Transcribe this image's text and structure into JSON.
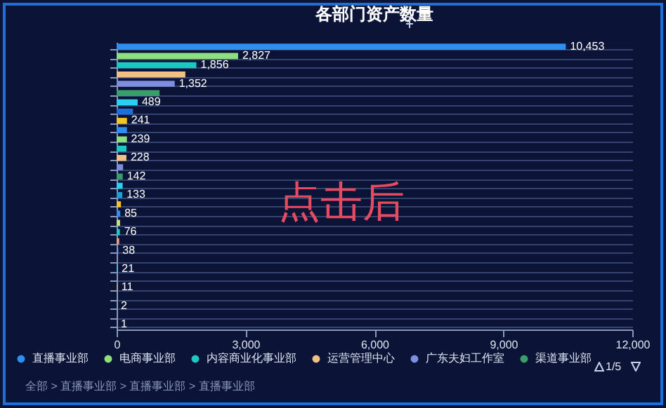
{
  "chart_data": {
    "type": "bar",
    "orientation": "horizontal",
    "title": "各部门资产数量",
    "categories": [
      null,
      null,
      null,
      null,
      null,
      null,
      null,
      null,
      null,
      null,
      null,
      null,
      null,
      null,
      null,
      null,
      null,
      null,
      null,
      null,
      null,
      null,
      null,
      null,
      null,
      null,
      null,
      null,
      null,
      null,
      null
    ],
    "series": [
      {
        "name": "直播事业部",
        "color": "#2f8ff0",
        "values": [
          10453,
          null,
          null,
          null,
          null,
          null,
          null,
          null,
          null,
          null,
          null,
          null,
          null,
          null,
          null,
          null,
          null,
          null,
          null,
          null,
          null,
          null,
          null,
          null,
          null,
          null,
          null,
          null,
          null,
          null,
          null
        ],
        "value_labels": [
          "10,453",
          null,
          null,
          null,
          null,
          null,
          null,
          null,
          null,
          null,
          null,
          null,
          null,
          null,
          null,
          null,
          null,
          null,
          null,
          null,
          null,
          null,
          null,
          null,
          null,
          null,
          null,
          null,
          null,
          null,
          null
        ]
      },
      {
        "name": "电商事业部",
        "color": "#8ee07f",
        "values": [
          null,
          2827,
          null,
          null,
          null,
          null,
          null,
          null,
          null,
          null,
          null,
          null,
          null,
          null,
          null,
          null,
          null,
          null,
          null,
          null,
          null,
          null,
          null,
          null,
          null,
          null,
          null,
          null,
          null,
          null,
          null
        ],
        "value_labels": [
          null,
          "2,827",
          null,
          null,
          null,
          null,
          null,
          null,
          null,
          null,
          null,
          null,
          null,
          null,
          null,
          null,
          null,
          null,
          null,
          null,
          null,
          null,
          null,
          null,
          null,
          null,
          null,
          null,
          null,
          null,
          null
        ]
      },
      {
        "name": "内容商业化事业部",
        "color": "#1ec8c2",
        "values": [
          null,
          null,
          1856,
          null,
          null,
          null,
          null,
          null,
          null,
          null,
          null,
          null,
          null,
          null,
          null,
          null,
          null,
          null,
          null,
          null,
          null,
          null,
          null,
          null,
          null,
          null,
          null,
          null,
          null,
          null,
          null
        ],
        "value_labels": [
          null,
          null,
          "1,856",
          null,
          null,
          null,
          null,
          null,
          null,
          null,
          null,
          null,
          null,
          null,
          null,
          null,
          null,
          null,
          null,
          null,
          null,
          null,
          null,
          null,
          null,
          null,
          null,
          null,
          null,
          null,
          null
        ]
      },
      {
        "name": "运营管理中心",
        "color": "#f0c085",
        "values": [
          null,
          null,
          null,
          1600,
          null,
          null,
          null,
          null,
          null,
          null,
          null,
          null,
          null,
          null,
          null,
          null,
          null,
          null,
          null,
          null,
          null,
          null,
          null,
          null,
          null,
          null,
          null,
          null,
          null,
          null,
          null
        ]
      },
      {
        "name": "广东夫妇工作室",
        "color": "#7f8fe0",
        "values": [
          null,
          null,
          null,
          null,
          1352,
          null,
          null,
          null,
          null,
          null,
          null,
          null,
          null,
          null,
          null,
          null,
          null,
          null,
          null,
          null,
          null,
          null,
          null,
          null,
          null,
          null,
          null,
          null,
          null,
          null,
          null
        ],
        "value_labels": [
          null,
          null,
          null,
          null,
          "1,352",
          null,
          null,
          null,
          null,
          null,
          null,
          null,
          null,
          null,
          null,
          null,
          null,
          null,
          null,
          null,
          null,
          null,
          null,
          null,
          null,
          null,
          null,
          null,
          null,
          null,
          null
        ]
      },
      {
        "name": "渠道事业部",
        "color": "#3a9e6a",
        "values": [
          null,
          null,
          null,
          null,
          null,
          1000,
          null,
          null,
          null,
          null,
          null,
          null,
          null,
          null,
          null,
          null,
          null,
          null,
          null,
          null,
          null,
          null,
          null,
          null,
          null,
          null,
          null,
          null,
          null,
          null,
          null
        ]
      },
      {
        "colors": [
          null,
          null,
          null,
          null,
          null,
          null,
          "#2ad0f0",
          "#1f6fd8",
          "#f5c623",
          "#2f8ff0",
          "#8ee07f",
          "#1ec8c2",
          "#f0c085",
          "#7f8fe0",
          "#3a9e6a",
          "#2ad0f0",
          "#1f9fd8",
          "#f5c623",
          "#2f8ff0",
          "#c8e07f",
          "#1ec8c2",
          "#f0a085",
          "#7f8fe0",
          null,
          "#2ad0f0",
          null,
          "#f5c623",
          null,
          "#8ee07f",
          null,
          "#f0c085"
        ],
        "values": [
          null,
          null,
          null,
          null,
          null,
          null,
          489,
          380,
          241,
          240,
          239,
          230,
          228,
          150,
          142,
          140,
          133,
          100,
          85,
          80,
          76,
          60,
          38,
          null,
          21,
          null,
          11,
          null,
          2,
          null,
          1
        ],
        "value_labels": [
          null,
          null,
          null,
          null,
          null,
          null,
          "489",
          null,
          "241",
          null,
          "239",
          null,
          "228",
          null,
          "142",
          null,
          "133",
          null,
          "85",
          null,
          "76",
          null,
          "38",
          null,
          "21",
          null,
          "11",
          null,
          "2",
          null,
          "1"
        ]
      }
    ],
    "xlim": [
      0,
      12000
    ],
    "xticks": [
      0,
      {
        "value": 3000,
        "label": "3,000"
      },
      {
        "value": 6000,
        "label": "6,000"
      },
      {
        "value": 9000,
        "label": "9,000"
      },
      {
        "value": 12000,
        "label": "12,000"
      }
    ],
    "grid": "y",
    "legend": "bottom",
    "annotations": [
      "点击后",
      "全部 > 直播事业部 > 直播事业部 > 直播事业部",
      "1/5"
    ]
  }
}
